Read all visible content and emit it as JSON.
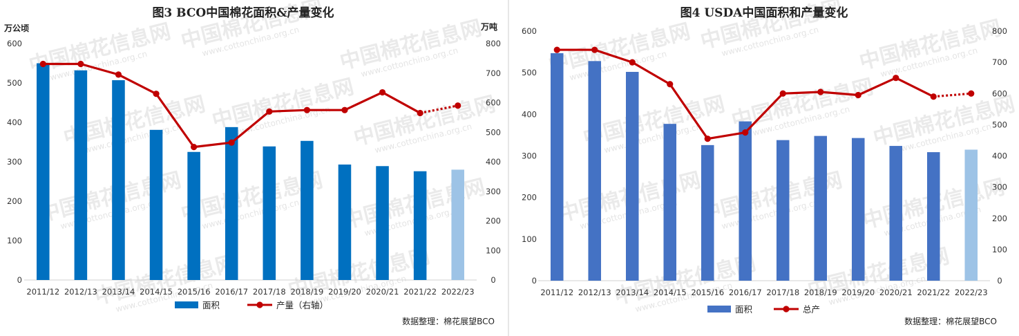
{
  "source_label": "数据整理：棉花展望BCO",
  "watermark": {
    "brand": "中国棉花信息网",
    "url": "www.cottonchina.org.cn"
  },
  "chart_data": [
    {
      "type": "bar",
      "title": "图3 BCO中国棉花面积&产量变化",
      "ylabel": "万公顷",
      "y2label": "万吨",
      "categories": [
        "2011/12",
        "2012/13",
        "2013/14",
        "2014/15",
        "2015/16",
        "2016/17",
        "2017/18",
        "2018/19",
        "2019/20",
        "2020/21",
        "2021/22",
        "2022/23"
      ],
      "ylim": [
        0,
        600
      ],
      "y_ticks": [
        0,
        100,
        200,
        300,
        400,
        500,
        600
      ],
      "y2lim": [
        0,
        800
      ],
      "y2_ticks": [
        0,
        100,
        200,
        300,
        400,
        500,
        600,
        700,
        800
      ],
      "series": [
        {
          "name": "面积",
          "type": "bar",
          "axis": "left",
          "color": "#0070C0",
          "last_color": "#9DC3E6",
          "values": [
            550,
            532,
            507,
            381,
            325,
            388,
            339,
            353,
            293,
            289,
            276,
            280
          ]
        },
        {
          "name": "产量（右轴）",
          "type": "line",
          "axis": "right",
          "color": "#C00000",
          "dashed_last_segment": true,
          "values": [
            731,
            731,
            695,
            630,
            450,
            465,
            570,
            575,
            575,
            635,
            565,
            590
          ]
        }
      ]
    },
    {
      "type": "bar",
      "title": "图4 USDA中国面积和产量变化",
      "categories": [
        "2011/12",
        "2012/13",
        "2013/14",
        "2014/15",
        "2015/16",
        "2016/17",
        "2017/18",
        "2018/19",
        "2019/20",
        "2020/21",
        "2021/22",
        "2022/23"
      ],
      "ylim": [
        0,
        600
      ],
      "y_ticks": [
        0,
        100,
        200,
        300,
        400,
        500,
        600
      ],
      "y2lim": [
        0,
        800
      ],
      "y2_ticks": [
        0,
        100,
        200,
        300,
        400,
        500,
        600,
        700,
        800
      ],
      "series": [
        {
          "name": "面积",
          "type": "bar",
          "axis": "left",
          "color": "#4472C4",
          "last_color": "#9DC3E6",
          "values": [
            547,
            528,
            502,
            377,
            326,
            383,
            338,
            348,
            343,
            324,
            309,
            315
          ]
        },
        {
          "name": "总产",
          "type": "line",
          "axis": "right",
          "color": "#C00000",
          "dashed_last_segment": true,
          "values": [
            740,
            740,
            700,
            630,
            455,
            475,
            600,
            605,
            595,
            650,
            590,
            600
          ]
        }
      ]
    }
  ]
}
